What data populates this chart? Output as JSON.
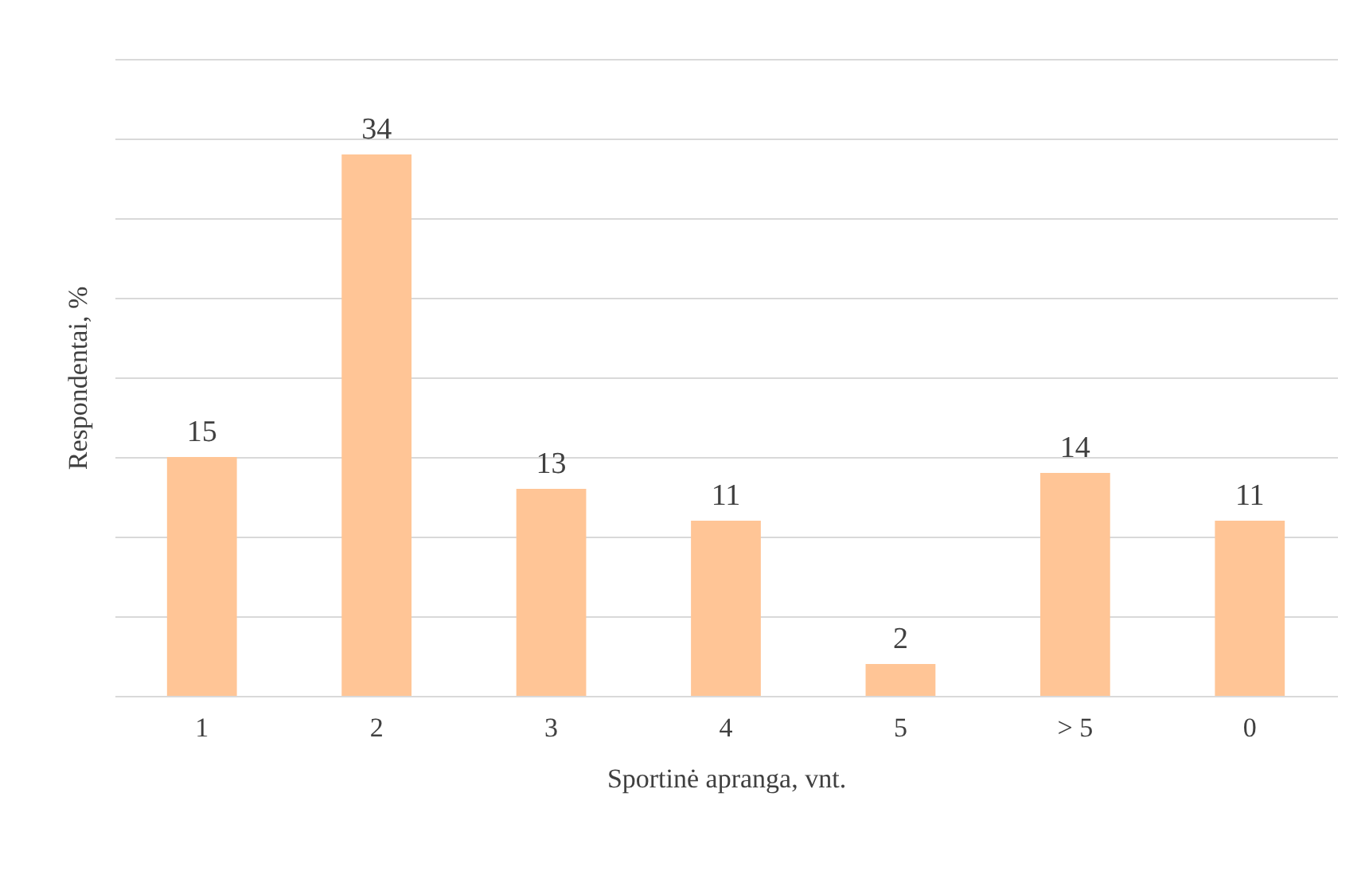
{
  "chart_data": {
    "type": "bar",
    "xlabel": "Sportinė apranga, vnt.",
    "ylabel": "Respondentai, %",
    "categories": [
      "1",
      "2",
      "3",
      "4",
      "5",
      "> 5",
      "0"
    ],
    "values": [
      15,
      34,
      13,
      11,
      2,
      14,
      11
    ],
    "color": "#ffc596",
    "ylim": [
      0,
      40
    ],
    "yticks": [
      {
        "value": 0,
        "label": null
      },
      {
        "value": 5,
        "label": null
      },
      {
        "value": 10,
        "label": null
      },
      {
        "value": 15,
        "label": null
      },
      {
        "value": 20,
        "label": null
      },
      {
        "value": 25,
        "label": null
      },
      {
        "value": 30,
        "label": null
      },
      {
        "value": 35,
        "label": null
      },
      {
        "value": 40,
        "label": null
      }
    ],
    "grid": "y",
    "tick_labels": "x",
    "data_labels": true
  }
}
